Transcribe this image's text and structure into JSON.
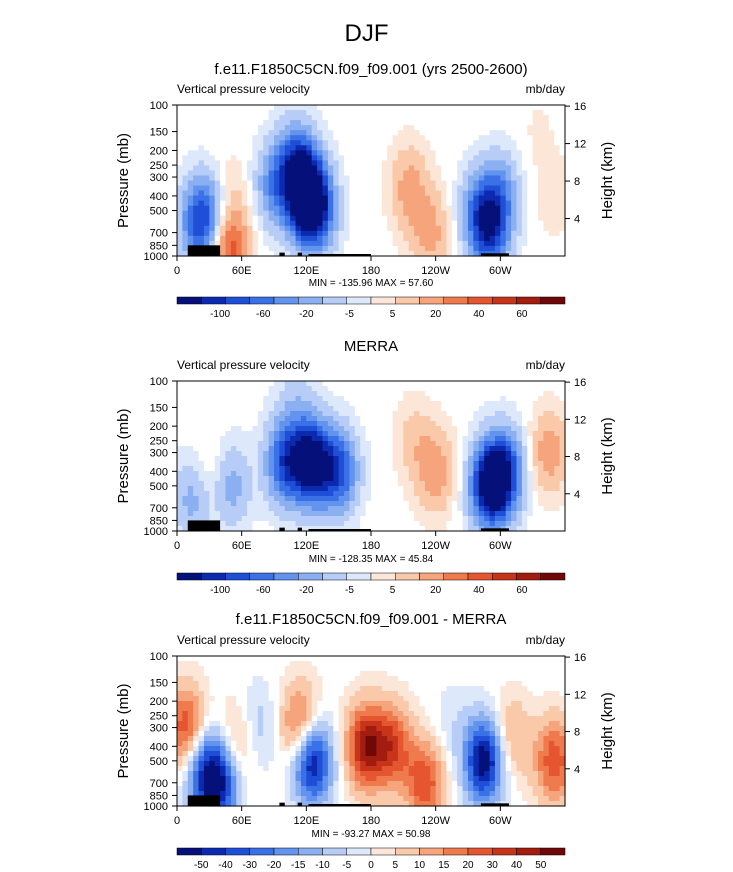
{
  "figure": {
    "title": "DJF"
  },
  "colors": {
    "palette": [
      "#05107a",
      "#0c2ab0",
      "#1f4fd6",
      "#3b71e6",
      "#6293ee",
      "#8ab0f2",
      "#b7cdf7",
      "#dde8fb",
      "#fbe6d8",
      "#f9c9aa",
      "#f6a47c",
      "#ef7a4e",
      "#e45530",
      "#c8341a",
      "#a21c10",
      "#700808"
    ]
  },
  "chart_data": [
    {
      "type": "contour",
      "title": "f.e11.F1850C5CN.f09_f09.001 (yrs 2500-2600)",
      "left_label": "Vertical pressure velocity",
      "right_label": "mb/day",
      "ylabel": "Pressure (mb)",
      "y2label": "Height (km)",
      "pressure_ticks": [
        "100",
        "150",
        "200",
        "250",
        "300",
        "400",
        "500",
        "700",
        "850",
        "1000"
      ],
      "height_ticks": [
        "16",
        "12",
        "8",
        "4"
      ],
      "x_ticks": [
        "0",
        "60E",
        "120E",
        "180",
        "120W",
        "60W"
      ],
      "xlim": [
        0,
        360
      ],
      "stats": "MIN = -135.96  MAX =  57.60",
      "colorbar_labels": [
        "-100",
        "-60",
        "-20",
        "-5",
        "5",
        "20",
        "40",
        "60"
      ],
      "features": [
        {
          "lon": 20,
          "p": 600,
          "value": -60
        },
        {
          "lon": 35,
          "p": 500,
          "value": -40
        },
        {
          "lon": 45,
          "p": 400,
          "value": 20
        },
        {
          "lon": 48,
          "p": 850,
          "value": 60
        },
        {
          "lon": 90,
          "p": 350,
          "value": -40
        },
        {
          "lon": 110,
          "p": 250,
          "value": -60
        },
        {
          "lon": 120,
          "p": 400,
          "value": -100
        },
        {
          "lon": 130,
          "p": 500,
          "value": -60
        },
        {
          "lon": 215,
          "p": 350,
          "value": 30
        },
        {
          "lon": 235,
          "p": 700,
          "value": 30
        },
        {
          "lon": 280,
          "p": 500,
          "value": -40
        },
        {
          "lon": 290,
          "p": 700,
          "value": -60
        },
        {
          "lon": 300,
          "p": 400,
          "value": -40
        },
        {
          "lon": 350,
          "p": 400,
          "value": 10
        },
        {
          "lon": 335,
          "p": 150,
          "value": 5
        }
      ]
    },
    {
      "type": "contour",
      "title": "MERRA",
      "left_label": "Vertical pressure velocity",
      "right_label": "mb/day",
      "ylabel": "Pressure (mb)",
      "y2label": "Height (km)",
      "pressure_ticks": [
        "100",
        "150",
        "200",
        "250",
        "300",
        "400",
        "500",
        "700",
        "850",
        "1000"
      ],
      "height_ticks": [
        "16",
        "12",
        "8",
        "4"
      ],
      "x_ticks": [
        "0",
        "60E",
        "120E",
        "180",
        "120W",
        "60W"
      ],
      "xlim": [
        0,
        360
      ],
      "stats": "MIN = -128.35  MAX =  45.84",
      "colorbar_labels": [
        "-100",
        "-60",
        "-20",
        "-5",
        "5",
        "20",
        "40",
        "60"
      ],
      "features": [
        {
          "lon": 15,
          "p": 600,
          "value": -20
        },
        {
          "lon": 30,
          "p": 450,
          "value": 10
        },
        {
          "lon": 50,
          "p": 500,
          "value": -20
        },
        {
          "lon": 100,
          "p": 350,
          "value": -40
        },
        {
          "lon": 125,
          "p": 350,
          "value": -60
        },
        {
          "lon": 150,
          "p": 400,
          "value": -40
        },
        {
          "lon": 110,
          "p": 150,
          "value": -10
        },
        {
          "lon": 240,
          "p": 400,
          "value": 20
        },
        {
          "lon": 220,
          "p": 250,
          "value": 10
        },
        {
          "lon": 290,
          "p": 500,
          "value": -60
        },
        {
          "lon": 305,
          "p": 400,
          "value": -40
        },
        {
          "lon": 345,
          "p": 300,
          "value": 20
        }
      ]
    },
    {
      "type": "contour",
      "title": "f.e11.F1850C5CN.f09_f09.001 - MERRA",
      "left_label": "Vertical pressure velocity",
      "right_label": "mb/day",
      "ylabel": "Pressure (mb)",
      "y2label": "Height (km)",
      "pressure_ticks": [
        "100",
        "150",
        "200",
        "250",
        "300",
        "400",
        "500",
        "700",
        "850",
        "1000"
      ],
      "height_ticks": [
        "16",
        "12",
        "8",
        "4"
      ],
      "x_ticks": [
        "0",
        "60E",
        "120E",
        "180",
        "120W",
        "60W"
      ],
      "xlim": [
        0,
        360
      ],
      "stats": "MIN = -93.27  MAX =  50.98",
      "colorbar_labels": [
        "-50",
        "-40",
        "-30",
        "-20",
        "-15",
        "-10",
        "-5",
        "0",
        "5",
        "10",
        "15",
        "20",
        "30",
        "40",
        "50"
      ],
      "features": [
        {
          "lon": 8,
          "p": 300,
          "value": 30
        },
        {
          "lon": 25,
          "p": 600,
          "value": -30
        },
        {
          "lon": 40,
          "p": 700,
          "value": -40
        },
        {
          "lon": 55,
          "p": 400,
          "value": 15
        },
        {
          "lon": 75,
          "p": 300,
          "value": -10
        },
        {
          "lon": 115,
          "p": 300,
          "value": 30
        },
        {
          "lon": 125,
          "p": 500,
          "value": -50
        },
        {
          "lon": 175,
          "p": 400,
          "value": 40
        },
        {
          "lon": 200,
          "p": 400,
          "value": 30
        },
        {
          "lon": 230,
          "p": 700,
          "value": 30
        },
        {
          "lon": 255,
          "p": 300,
          "value": -5
        },
        {
          "lon": 285,
          "p": 500,
          "value": -50
        },
        {
          "lon": 310,
          "p": 350,
          "value": 15
        },
        {
          "lon": 350,
          "p": 500,
          "value": 30
        }
      ]
    }
  ]
}
